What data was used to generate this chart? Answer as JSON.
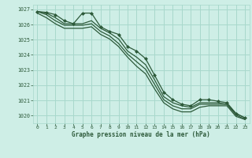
{
  "title": "Graphe pression niveau de la mer (hPa)",
  "bg_color": "#ceeee6",
  "plot_bg_color": "#ceeee6",
  "grid_color": "#a8d8cc",
  "line_color": "#2d5a3a",
  "ylim": [
    1019.5,
    1027.3
  ],
  "xlim": [
    -0.5,
    23.5
  ],
  "yticks": [
    1020,
    1021,
    1022,
    1023,
    1024,
    1025,
    1026,
    1027
  ],
  "xticks": [
    0,
    1,
    2,
    3,
    4,
    5,
    6,
    7,
    8,
    9,
    10,
    11,
    12,
    13,
    14,
    15,
    16,
    17,
    18,
    19,
    20,
    21,
    22,
    23
  ],
  "series": [
    {
      "x": [
        0,
        1,
        2,
        3,
        4,
        5,
        6,
        7,
        8,
        9,
        10,
        11,
        12,
        13,
        14,
        15,
        16,
        17,
        18,
        19,
        20,
        21,
        22,
        23
      ],
      "y": [
        1026.85,
        1026.8,
        1026.65,
        1026.25,
        1026.05,
        1026.75,
        1026.75,
        1025.85,
        1025.55,
        1025.35,
        1024.55,
        1024.25,
        1023.75,
        1022.65,
        1021.55,
        1021.05,
        1020.75,
        1020.65,
        1021.05,
        1021.05,
        1020.95,
        1020.85,
        1020.15,
        1019.85
      ],
      "marker": true
    },
    {
      "x": [
        0,
        1,
        2,
        3,
        4,
        5,
        6,
        7,
        8,
        9,
        10,
        11,
        12,
        13,
        14,
        15,
        16,
        17,
        18,
        19,
        20,
        21,
        22,
        23
      ],
      "y": [
        1026.85,
        1026.75,
        1026.45,
        1026.05,
        1026.05,
        1026.05,
        1026.25,
        1025.75,
        1025.45,
        1025.05,
        1024.25,
        1023.85,
        1023.35,
        1022.35,
        1021.25,
        1020.85,
        1020.65,
        1020.55,
        1020.85,
        1020.85,
        1020.85,
        1020.75,
        1020.15,
        1019.85
      ],
      "marker": false
    },
    {
      "x": [
        0,
        1,
        2,
        3,
        4,
        5,
        6,
        7,
        8,
        9,
        10,
        11,
        12,
        13,
        14,
        15,
        16,
        17,
        18,
        19,
        20,
        21,
        22,
        23
      ],
      "y": [
        1026.85,
        1026.65,
        1026.25,
        1025.95,
        1025.95,
        1025.95,
        1026.05,
        1025.55,
        1025.25,
        1024.75,
        1024.05,
        1023.55,
        1023.05,
        1022.05,
        1021.05,
        1020.65,
        1020.45,
        1020.45,
        1020.75,
        1020.75,
        1020.75,
        1020.75,
        1020.05,
        1019.75
      ],
      "marker": false
    },
    {
      "x": [
        0,
        1,
        2,
        3,
        4,
        5,
        6,
        7,
        8,
        9,
        10,
        11,
        12,
        13,
        14,
        15,
        16,
        17,
        18,
        19,
        20,
        21,
        22,
        23
      ],
      "y": [
        1026.75,
        1026.45,
        1026.05,
        1025.75,
        1025.75,
        1025.75,
        1025.85,
        1025.35,
        1025.05,
        1024.55,
        1023.85,
        1023.25,
        1022.75,
        1021.75,
        1020.85,
        1020.45,
        1020.25,
        1020.25,
        1020.55,
        1020.65,
        1020.65,
        1020.65,
        1019.95,
        1019.75
      ],
      "marker": false
    }
  ]
}
